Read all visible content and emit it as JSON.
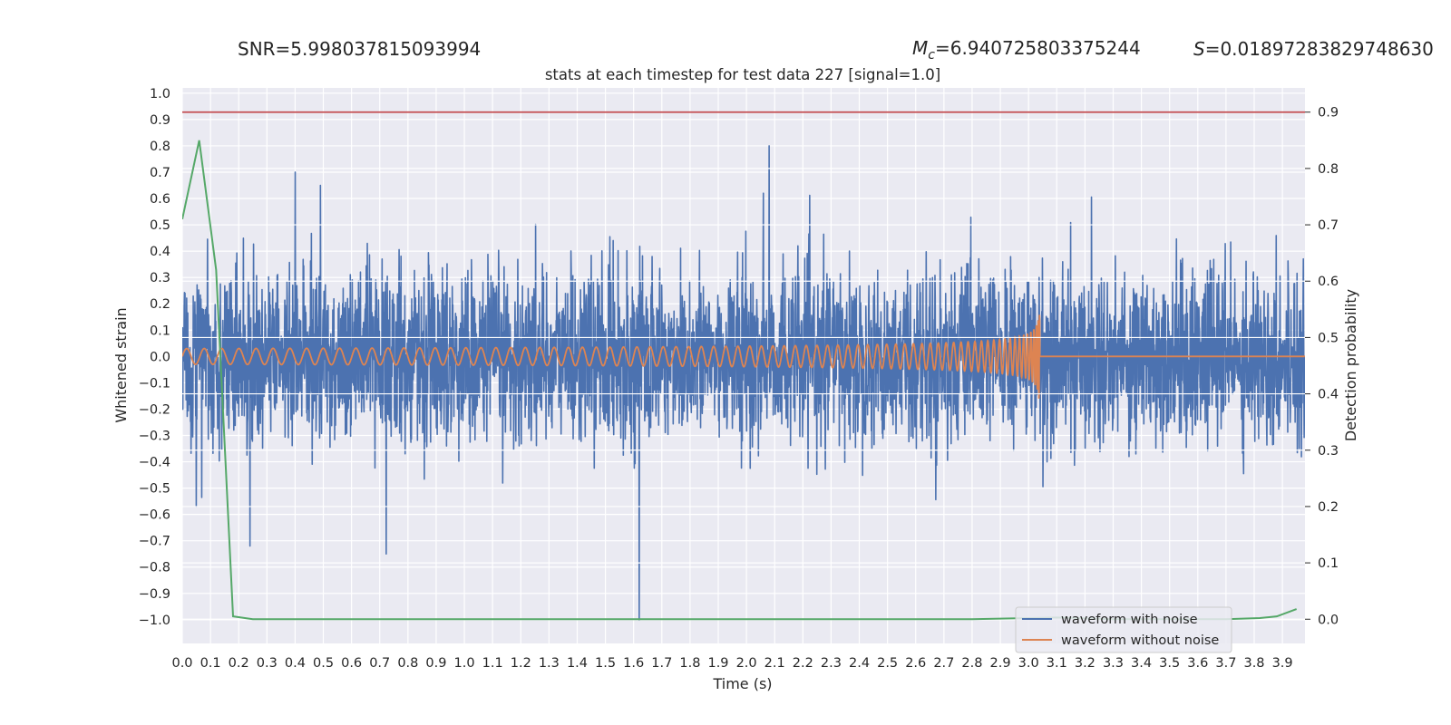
{
  "header": {
    "snr_text": "SNR=5.998037815093994",
    "mc_text": "=6.940725803375244",
    "mc_symbol": "M",
    "mc_subscript": "c",
    "s_text": "=0.01897283829748630",
    "s_symbol": "S"
  },
  "chart_data": {
    "type": "line",
    "title": "stats at each timestep for test data 227 [signal=1.0]",
    "xlabel": "Time (s)",
    "ylabel": "Whitened strain",
    "y2label": "Detection probability",
    "xlim": [
      0.0,
      3.98
    ],
    "ylim": [
      -1.09,
      1.02
    ],
    "y2lim": [
      -0.043,
      0.943
    ],
    "x_ticks": [
      "0.0",
      "0.1",
      "0.2",
      "0.3",
      "0.4",
      "0.5",
      "0.6",
      "0.7",
      "0.8",
      "0.9",
      "1.0",
      "1.1",
      "1.2",
      "1.3",
      "1.4",
      "1.5",
      "1.6",
      "1.7",
      "1.8",
      "1.9",
      "2.0",
      "2.1",
      "2.2",
      "2.3",
      "2.4",
      "2.5",
      "2.6",
      "2.7",
      "2.8",
      "2.9",
      "3.0",
      "3.1",
      "3.2",
      "3.3",
      "3.4",
      "3.5",
      "3.6",
      "3.7",
      "3.8",
      "3.9"
    ],
    "y_ticks": [
      "1.0",
      "0.9",
      "0.8",
      "0.7",
      "0.6",
      "0.5",
      "0.4",
      "0.3",
      "0.2",
      "0.1",
      "0.0",
      "−0.1",
      "−0.2",
      "−0.3",
      "−0.4",
      "−0.5",
      "−0.6",
      "−0.7",
      "−0.8",
      "−0.9",
      "−1.0"
    ],
    "y2_ticks": [
      "0.9",
      "0.8",
      "0.7",
      "0.6",
      "0.5",
      "0.4",
      "0.3",
      "0.2",
      "0.1",
      "0.0"
    ],
    "grid": true,
    "legend_position": "bottom-right",
    "colors": {
      "noisy": "#4c72b0",
      "clean": "#dd8452",
      "probability": "#55a868",
      "threshold": "#c44e52",
      "background": "#eaeaf2",
      "grid": "#ffffff"
    },
    "series": [
      {
        "name": "waveform with noise",
        "axis": "left",
        "description": "whitened noisy strain, roughly Gaussian, extremes approx +0.80 at 2.08 s and -1.00 at 1.62 s",
        "envelope_max": 0.8,
        "envelope_min": -1.0
      },
      {
        "name": "waveform without noise",
        "axis": "left",
        "description": "chirp signal, amplitude growing from 0.03 to ~0.17, frequency increasing, merging near 3.03 s then flat at 0",
        "merger_time": 3.03,
        "start_amplitude": 0.03,
        "peak_amplitude": 0.17
      },
      {
        "axis": "right",
        "x": [
          0.0,
          0.06,
          0.12,
          0.18,
          0.25,
          0.5,
          1.0,
          1.5,
          2.0,
          2.5,
          2.8,
          3.0,
          3.1,
          3.3,
          3.5,
          3.7,
          3.82,
          3.88,
          3.95
        ],
        "y": [
          0.71,
          0.85,
          0.62,
          0.005,
          0.0,
          0.0,
          0.0,
          0.0,
          0.0,
          0.0,
          0.0,
          0.002,
          0.003,
          0.0,
          0.0,
          0.0,
          0.002,
          0.005,
          0.018
        ]
      },
      {
        "axis": "right",
        "x": [
          0.0,
          3.98
        ],
        "y": [
          0.9,
          0.9
        ]
      }
    ],
    "legend": [
      "waveform with noise",
      "waveform without noise"
    ]
  }
}
